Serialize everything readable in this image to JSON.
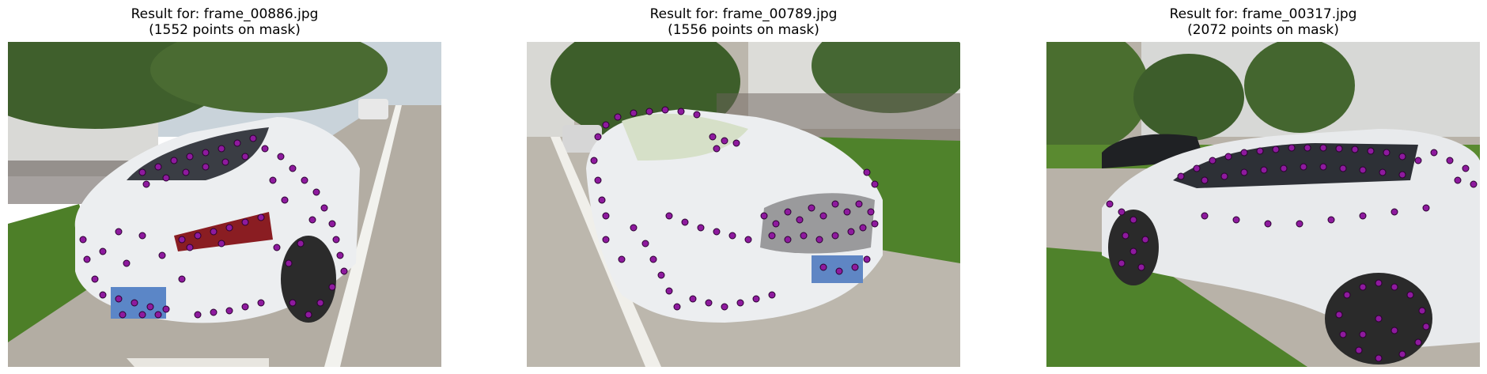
{
  "panels": [
    {
      "title_line1": "Result for: frame_00886.jpg",
      "title_line2": "(1552 points on mask)"
    },
    {
      "title_line1": "Result for: frame_00789.jpg",
      "title_line2": "(1556 points on mask)"
    },
    {
      "title_line1": "Result for: frame_00317.jpg",
      "title_line2": "(2072 points on mask)"
    }
  ],
  "colors": {
    "point_fill": "#8e1a9e",
    "point_stroke": "#2a0030",
    "car_white": "#e9eaec",
    "grass": "#5a8a2a",
    "pavement": "#b9b4ab"
  }
}
